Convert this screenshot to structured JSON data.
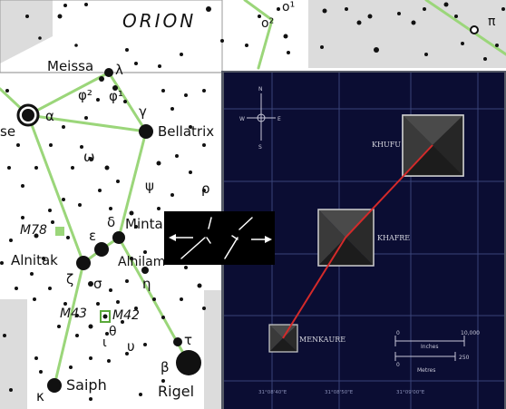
{
  "star_chart": {
    "constellation_title": "ORION",
    "star_labels": {
      "meissa": "Meissa",
      "lambda": "λ",
      "phi2": "φ²",
      "phi1": "φ¹",
      "alpha": "α",
      "betelgeuse_partial": "se",
      "gamma": "γ",
      "bellatrix": "Bellatrix",
      "omega": "ω",
      "psi": "ψ",
      "rho": "ρ",
      "delta": "δ",
      "mintaka": "Minta",
      "epsilon": "ε",
      "alnitak": "Alnitak",
      "alnilam": "Alnilam",
      "zeta": "ζ",
      "sigma": "σ",
      "eta": "η",
      "theta": "θ",
      "iota": "ι",
      "upsilon": "υ",
      "tau": "τ",
      "beta": "β",
      "saiph": "Saiph",
      "rigel": "Rigel",
      "kappa": "κ",
      "omicron1": "o¹",
      "omicron2": "o²",
      "pi": "π"
    },
    "deep_sky_labels": {
      "m78": "M78",
      "m43": "M43",
      "m42": "M42"
    }
  },
  "pyramid_map": {
    "compass": {
      "n": "N",
      "w": "W",
      "e": "E",
      "s": "S"
    },
    "pyramids": [
      {
        "name": "KHUFU"
      },
      {
        "name": "KHAFRE"
      },
      {
        "name": "MENKAURE"
      }
    ],
    "scale_bar": {
      "top_end_label": "10,000",
      "top_zero_label": "0",
      "top_unit": "Inches",
      "bottom_zero_label": "0",
      "bottom_end_label": "250",
      "bottom_unit": "Metres"
    },
    "coordinate_labels": [
      "31°08'40\"E",
      "31°08'50\"E",
      "31°09'00\"E"
    ]
  },
  "colors": {
    "chart_line": "#9bd67a",
    "chart_star": "#111111",
    "map_background": "#0b0d33",
    "map_grid": "#3a4478",
    "alignment_line": "#d42a2a",
    "pyramid_face": "#3a3a3a",
    "inset_frame": "#555a66"
  }
}
